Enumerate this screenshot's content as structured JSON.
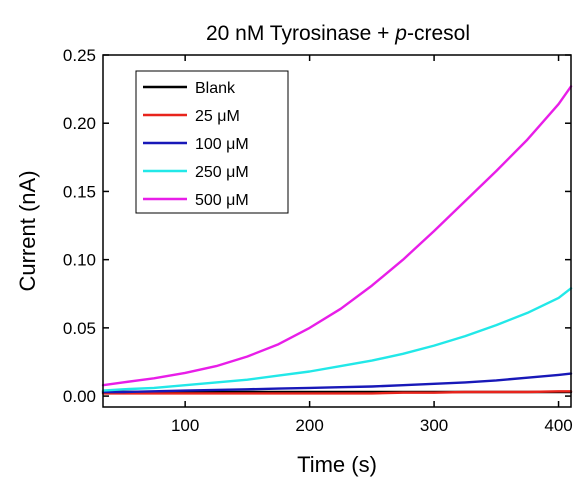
{
  "chart_data": {
    "type": "line",
    "title": "20 nM Tyrosinase + p-cresol",
    "title_parts": {
      "prefix": "20 nM Tyrosinase + ",
      "italic": "p",
      "suffix": "-cresol"
    },
    "xlabel": "Time (s)",
    "ylabel": "Current (nA)",
    "xlim": [
      34,
      410
    ],
    "ylim": [
      -0.008,
      0.25
    ],
    "xticks": [
      100,
      200,
      300,
      400
    ],
    "xtick_labels": [
      "100",
      "200",
      "300",
      "400"
    ],
    "yticks": [
      0.0,
      0.05,
      0.1,
      0.15,
      0.2,
      0.25
    ],
    "ytick_labels": [
      "0.00",
      "0.05",
      "0.10",
      "0.15",
      "0.20",
      "0.25"
    ],
    "grid": false,
    "legend_position": "top-left",
    "x": [
      34,
      50,
      75,
      100,
      125,
      150,
      175,
      200,
      225,
      250,
      275,
      300,
      325,
      350,
      375,
      400,
      410
    ],
    "series": [
      {
        "name": "Blank",
        "color": "#000000",
        "values": [
          0.003,
          0.003,
          0.003,
          0.003,
          0.003,
          0.003,
          0.003,
          0.003,
          0.003,
          0.003,
          0.003,
          0.003,
          0.003,
          0.003,
          0.003,
          0.003,
          0.003
        ]
      },
      {
        "name": "25 μM",
        "color": "#e8241c",
        "values": [
          0.002,
          0.002,
          0.002,
          0.002,
          0.002,
          0.002,
          0.002,
          0.002,
          0.002,
          0.002,
          0.0025,
          0.0025,
          0.003,
          0.003,
          0.003,
          0.0035,
          0.0035
        ]
      },
      {
        "name": "100 μM",
        "color": "#1818b8",
        "values": [
          0.003,
          0.003,
          0.0035,
          0.004,
          0.0045,
          0.005,
          0.0055,
          0.006,
          0.0065,
          0.007,
          0.008,
          0.009,
          0.01,
          0.0115,
          0.0135,
          0.0155,
          0.0165
        ]
      },
      {
        "name": "250 μM",
        "color": "#22e8e8",
        "values": [
          0.004,
          0.005,
          0.006,
          0.008,
          0.01,
          0.012,
          0.015,
          0.018,
          0.022,
          0.026,
          0.031,
          0.037,
          0.044,
          0.052,
          0.061,
          0.072,
          0.079
        ]
      },
      {
        "name": "500 μM",
        "color": "#e81ee8",
        "values": [
          0.008,
          0.01,
          0.013,
          0.017,
          0.022,
          0.029,
          0.038,
          0.05,
          0.064,
          0.081,
          0.1,
          0.121,
          0.143,
          0.165,
          0.188,
          0.214,
          0.227
        ]
      }
    ]
  }
}
